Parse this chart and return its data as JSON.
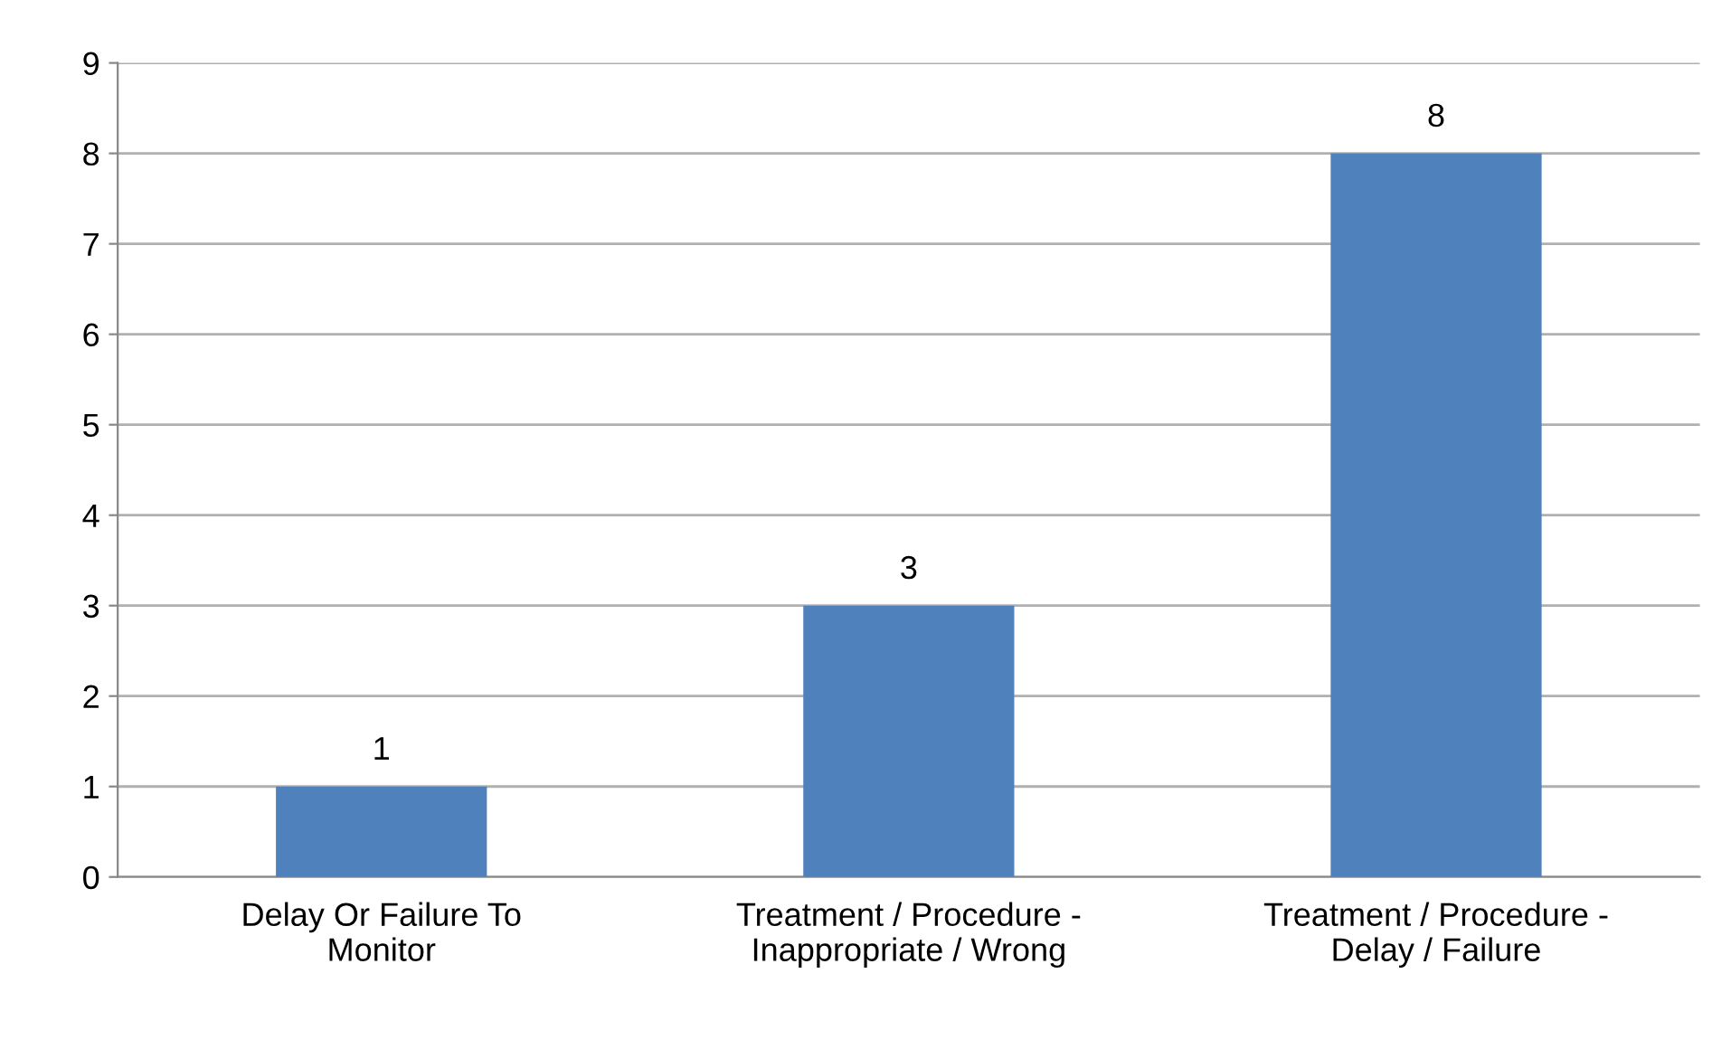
{
  "chart_data": {
    "type": "bar",
    "categories": [
      "Delay Or Failure To\nMonitor",
      "Treatment / Procedure -\nInappropriate / Wrong",
      "Treatment / Procedure -\nDelay / Failure"
    ],
    "values": [
      1,
      3,
      8
    ],
    "color": "#4f81bd",
    "ylim": [
      0,
      9
    ],
    "yticks": [
      0,
      1,
      2,
      3,
      4,
      5,
      6,
      7,
      8,
      9
    ],
    "grid": "y",
    "data_labels": true
  }
}
